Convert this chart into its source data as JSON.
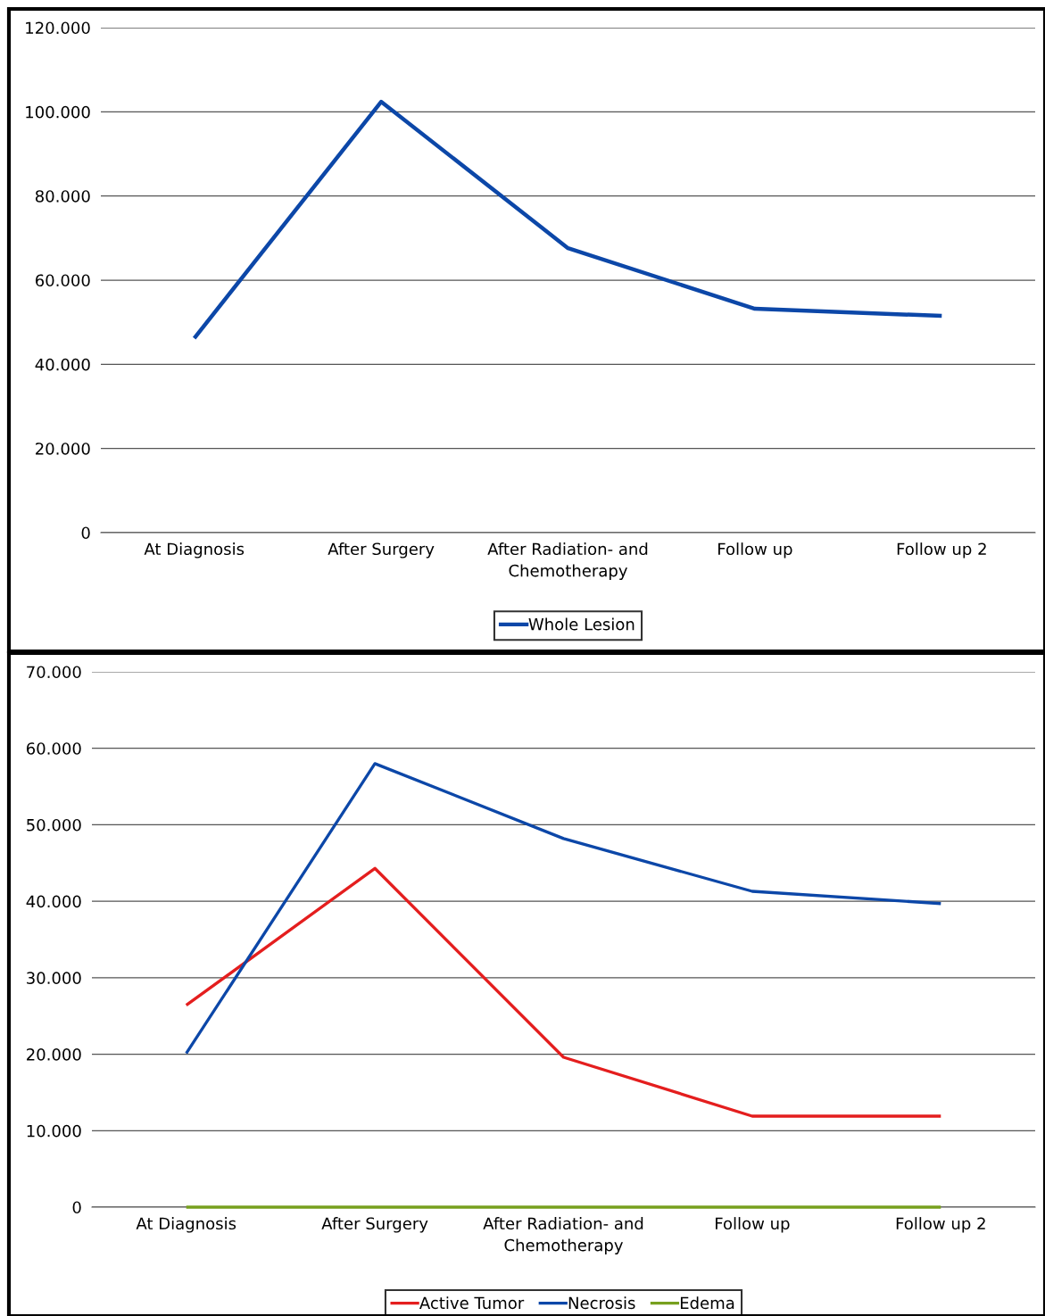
{
  "chart_data": [
    {
      "type": "line",
      "categories": [
        "At Diagnosis",
        "After Surgery",
        "After Radiation- and\nChemotherapy",
        "Follow up",
        "Follow up 2"
      ],
      "series": [
        {
          "name": "Whole Lesion",
          "color": "#0c47a8",
          "values": [
            46200,
            102400,
            67600,
            53200,
            51500
          ]
        }
      ],
      "ylim": [
        0,
        120000
      ],
      "yticks": [
        {
          "value": 0,
          "label": "0"
        },
        {
          "value": 20000,
          "label": "20.000"
        },
        {
          "value": 40000,
          "label": "40.000"
        },
        {
          "value": 60000,
          "label": "60.000"
        },
        {
          "value": 80000,
          "label": "80.000"
        },
        {
          "value": 100000,
          "label": "100.000"
        },
        {
          "value": 120000,
          "label": "120.000"
        }
      ],
      "grid": "y",
      "legend": "bottom",
      "marker": "none",
      "line_style": "solid"
    },
    {
      "type": "line",
      "categories": [
        "At Diagnosis",
        "After Surgery",
        "After Radiation- and\nChemotherapy",
        "Follow up",
        "Follow up 2"
      ],
      "series": [
        {
          "name": "Active Tumor",
          "color": "#e41e1e",
          "values": [
            26400,
            44300,
            19600,
            11900,
            11900
          ]
        },
        {
          "name": "Necrosis",
          "color": "#0c47a8",
          "values": [
            20100,
            58000,
            48200,
            41300,
            39700
          ]
        },
        {
          "name": "Edema",
          "color": "#77a01e",
          "values": [
            0,
            0,
            0,
            0,
            0
          ]
        }
      ],
      "ylim": [
        0,
        70000
      ],
      "yticks": [
        {
          "value": 0,
          "label": "0"
        },
        {
          "value": 10000,
          "label": "10.000"
        },
        {
          "value": 20000,
          "label": "20.000"
        },
        {
          "value": 30000,
          "label": "30.000"
        },
        {
          "value": 40000,
          "label": "40.000"
        },
        {
          "value": 50000,
          "label": "50.000"
        },
        {
          "value": 60000,
          "label": "60.000"
        },
        {
          "value": 70000,
          "label": "70.000"
        }
      ],
      "grid": "y",
      "legend": "bottom",
      "marker": "none",
      "line_style": "solid"
    }
  ]
}
